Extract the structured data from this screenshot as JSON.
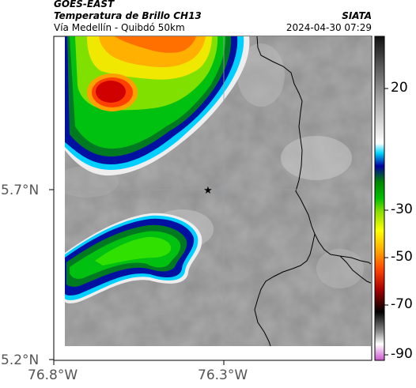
{
  "header": {
    "satellite": "GOES-EAST",
    "product": "Temperatura de Brillo CH13",
    "route": "Vía Medellín - Quibdó 50km",
    "agency": "SIATA",
    "datetime": "2024-04-30 07:29"
  },
  "axes": {
    "y_ticks": [
      "5.7°N",
      "5.2°N"
    ],
    "x_ticks": [
      "76.8°W",
      "76.3°W"
    ]
  },
  "colorbar": {
    "ticks": [
      "20",
      "-30",
      "-50",
      "-70",
      "-90"
    ],
    "scale_colors": [
      "#222222",
      "#ffffff",
      "#00d8ff",
      "#00a000",
      "#ffff00",
      "#ff0000",
      "#000000",
      "#ff66ff"
    ]
  },
  "marker": {
    "icon": "star-icon"
  },
  "colors": {
    "ground": "#8c8c8c",
    "cloud_cold": "#0000b0",
    "cloud_core": "#d00000"
  }
}
